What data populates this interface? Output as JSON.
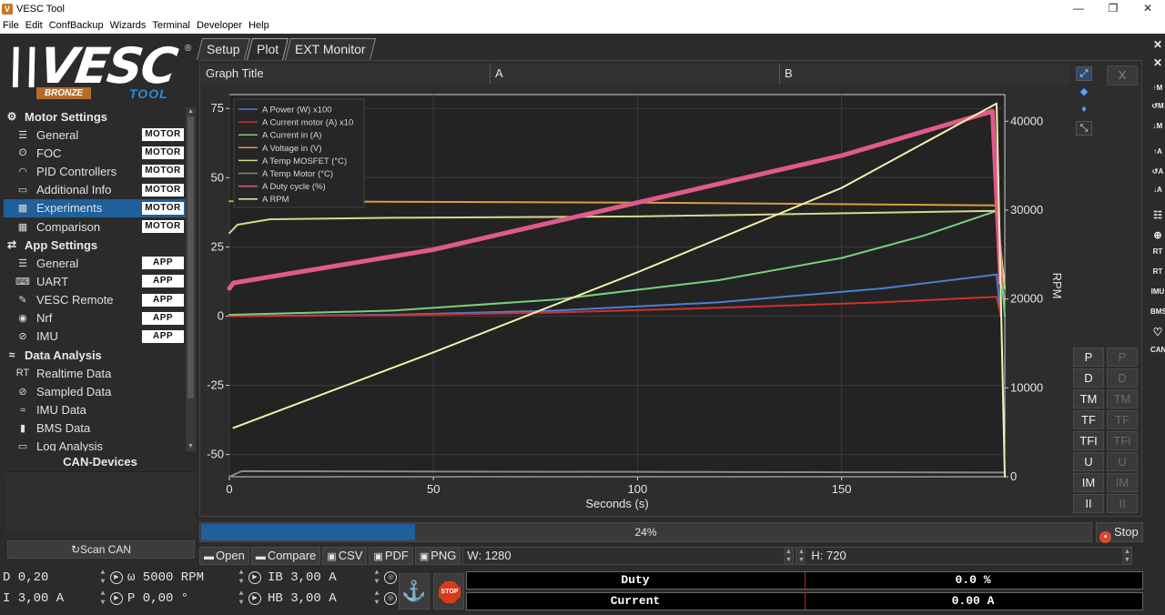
{
  "window": {
    "title": "VESC Tool",
    "icon_letter": "V",
    "minimize": "—",
    "maximize": "❐",
    "close": "✕"
  },
  "menu": [
    "File",
    "Edit",
    "ConfBackup",
    "Wizards",
    "Terminal",
    "Developer",
    "Help"
  ],
  "logo": {
    "main": "\\\\VESC",
    "edition": "BRONZE",
    "tool": "TOOL",
    "reg": "®"
  },
  "nav": {
    "motor_settings": {
      "label": "Motor Settings",
      "items": [
        {
          "label": "General",
          "tag": "MOTOR",
          "icon": "sliders-icon"
        },
        {
          "label": "FOC",
          "tag": "MOTOR",
          "icon": "coil-icon"
        },
        {
          "label": "PID Controllers",
          "tag": "MOTOR",
          "icon": "gauge-icon"
        },
        {
          "label": "Additional Info",
          "tag": "MOTOR",
          "icon": "info-icon"
        },
        {
          "label": "Experiments",
          "tag": "MOTOR",
          "icon": "calculator-icon"
        },
        {
          "label": "Comparison",
          "tag": "MOTOR",
          "icon": "calculator-icon"
        }
      ]
    },
    "app_settings": {
      "label": "App Settings",
      "items": [
        {
          "label": "General",
          "tag": "APP",
          "icon": "sliders-icon"
        },
        {
          "label": "UART",
          "tag": "APP",
          "icon": "keyboard-icon"
        },
        {
          "label": "VESC Remote",
          "tag": "APP",
          "icon": "remote-icon"
        },
        {
          "label": "Nrf",
          "tag": "APP",
          "icon": "radio-icon"
        },
        {
          "label": "IMU",
          "tag": "APP",
          "icon": "imu-icon"
        }
      ]
    },
    "data_analysis": {
      "label": "Data Analysis",
      "items": [
        {
          "label": "Realtime Data",
          "icon": "realtime-icon"
        },
        {
          "label": "Sampled Data",
          "icon": "sampled-icon"
        },
        {
          "label": "IMU Data",
          "icon": "imu-data-icon"
        },
        {
          "label": "BMS Data",
          "icon": "battery-icon"
        },
        {
          "label": "Log Analysis",
          "icon": "log-icon"
        }
      ]
    }
  },
  "can": {
    "header": "CAN-Devices",
    "scan_button": "Scan CAN"
  },
  "tabs": [
    "Setup",
    "Plot",
    "EXT Monitor"
  ],
  "plot_header": {
    "title": "Graph Title",
    "a": "A",
    "b": "B"
  },
  "side_tools": {
    "close": "X",
    "letters": [
      "P",
      "D",
      "TM",
      "TF",
      "TFI",
      "U",
      "IM",
      "II"
    ]
  },
  "chart_data": {
    "type": "line",
    "xlabel": "Seconds (s)",
    "y2label": "RPM",
    "xlim": [
      0,
      190
    ],
    "ylim": [
      -58,
      80
    ],
    "y2lim": [
      0,
      43000
    ],
    "x_ticks": [
      0,
      50,
      100,
      150
    ],
    "y_ticks": [
      75,
      50,
      25,
      0,
      -25,
      -50
    ],
    "y2_ticks": [
      40000,
      30000,
      20000,
      10000,
      0
    ],
    "grid": true,
    "legend_placement": "top-left",
    "series": [
      {
        "name": "A Power (W) x100",
        "color": "#4a7fd4",
        "axis": "y",
        "points": [
          [
            0,
            0
          ],
          [
            40,
            0.5
          ],
          [
            80,
            2
          ],
          [
            120,
            5
          ],
          [
            160,
            10
          ],
          [
            188,
            15
          ],
          [
            189,
            0
          ]
        ]
      },
      {
        "name": "A Current motor (A) x10",
        "color": "#d03030",
        "axis": "y",
        "points": [
          [
            0,
            0
          ],
          [
            40,
            0.3
          ],
          [
            80,
            1.3
          ],
          [
            120,
            3
          ],
          [
            160,
            5
          ],
          [
            188,
            7
          ],
          [
            189,
            0
          ]
        ]
      },
      {
        "name": "A Current in (A)",
        "color": "#7ad07a",
        "axis": "y",
        "points": [
          [
            0,
            0.5
          ],
          [
            40,
            2
          ],
          [
            80,
            6
          ],
          [
            120,
            13
          ],
          [
            150,
            21
          ],
          [
            170,
            29
          ],
          [
            188,
            38
          ],
          [
            190,
            0
          ]
        ]
      },
      {
        "name": "A Voltage in (V)",
        "color": "#d8a040",
        "axis": "y",
        "points": [
          [
            0,
            41.5
          ],
          [
            100,
            41
          ],
          [
            188,
            40
          ]
        ]
      },
      {
        "name": "A Temp MOSFET (°C)",
        "color": "#d8d890",
        "axis": "y",
        "points": [
          [
            0,
            30
          ],
          [
            2,
            33
          ],
          [
            10,
            35
          ],
          [
            40,
            35.5
          ],
          [
            100,
            36
          ],
          [
            188,
            38
          ],
          [
            190,
            10
          ]
        ]
      },
      {
        "name": "A Temp Motor (°C)",
        "color": "#888888",
        "axis": "y",
        "points": [
          [
            0,
            -58
          ],
          [
            3,
            -56
          ],
          [
            190,
            -56.5
          ]
        ]
      },
      {
        "name": "A Duty cycle (%)",
        "color": "#e05a8a",
        "axis": "y",
        "points": [
          [
            0,
            10
          ],
          [
            1,
            12
          ],
          [
            50,
            24
          ],
          [
            100,
            41
          ],
          [
            150,
            58
          ],
          [
            187,
            74
          ],
          [
            189,
            12
          ]
        ]
      },
      {
        "name": "A RPM",
        "color": "#f4f0b0",
        "axis": "y2",
        "points": [
          [
            1,
            5500
          ],
          [
            50,
            14000
          ],
          [
            100,
            23000
          ],
          [
            150,
            32500
          ],
          [
            188,
            42000
          ],
          [
            190,
            0
          ]
        ]
      }
    ]
  },
  "progress": {
    "value": 0.24,
    "text": "24%",
    "stop": "Stop"
  },
  "export": {
    "open": "Open",
    "compare": "Compare",
    "csv": "CSV",
    "pdf": "PDF",
    "png": "PNG",
    "width": "W: 1280",
    "height": "H: 720"
  },
  "controls": {
    "row1": [
      "D 0,20",
      "ω 5000 RPM",
      "IB 3,00 A"
    ],
    "row2": [
      "I 3,00 A",
      "P 0,00 °",
      "HB 3,00 A"
    ],
    "anchor": "⚓",
    "stop": "STOP"
  },
  "gauges": [
    {
      "label": "Duty",
      "value": "0.0 %"
    },
    {
      "label": "Current",
      "value": "0.00 A"
    }
  ],
  "right_strip": [
    "↑M",
    "↺M",
    "↓M",
    "↑A",
    "↺A",
    "↓A",
    "RT",
    "RT",
    "IMU",
    "BMS",
    "♡",
    "CAN"
  ]
}
